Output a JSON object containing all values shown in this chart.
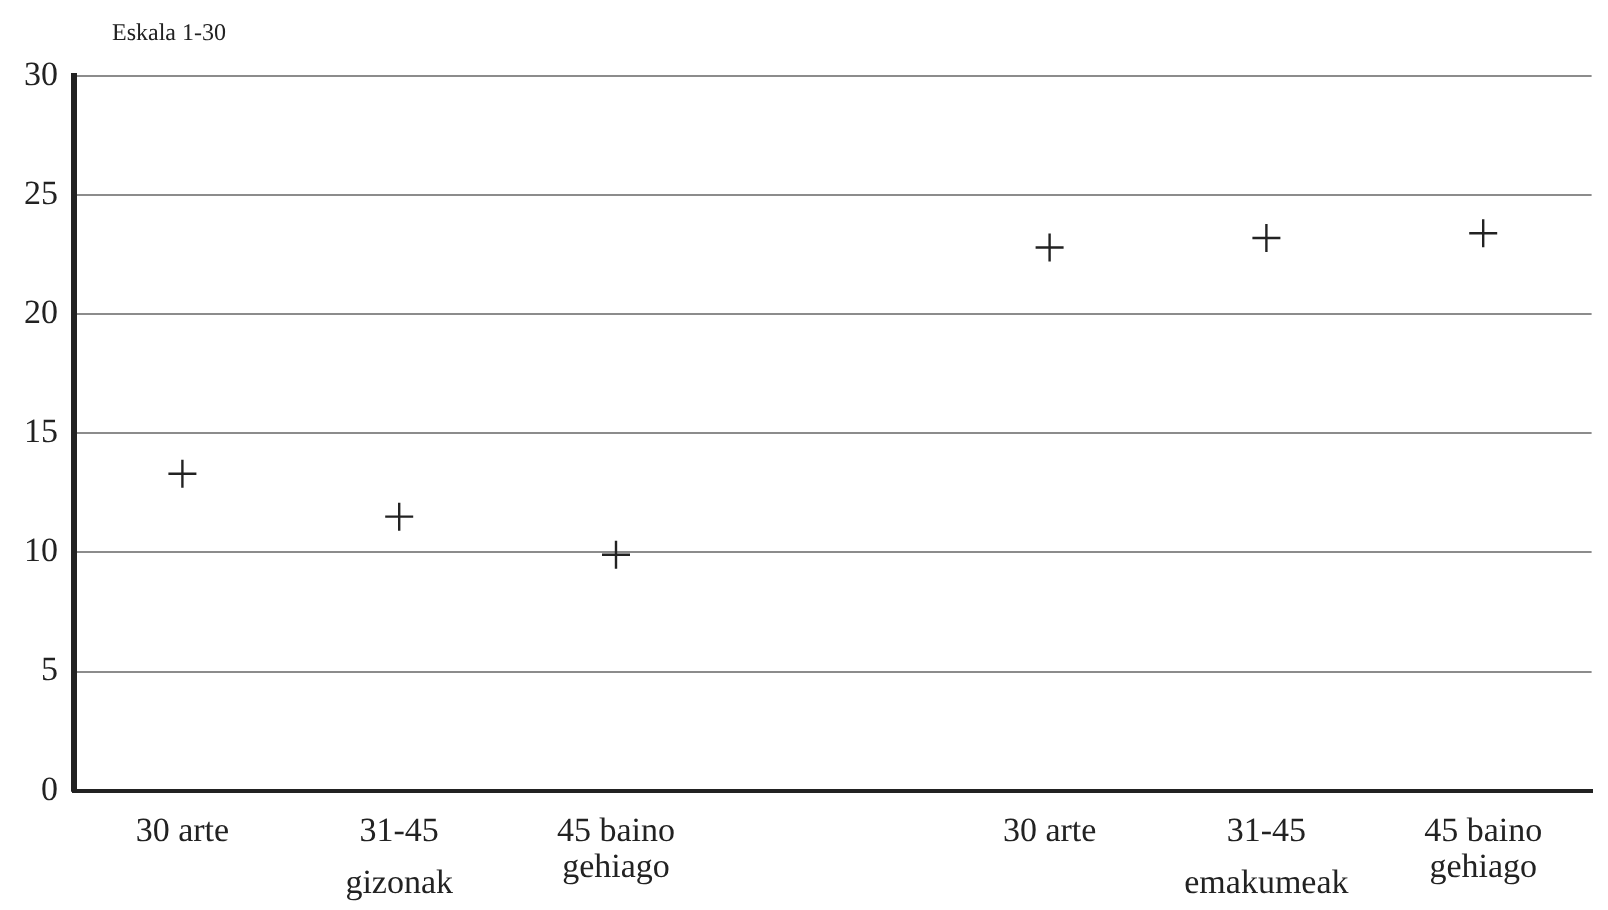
{
  "chart_data": {
    "type": "scatter",
    "ylabel": "Eskala 1-30",
    "categories": [
      "30 arte",
      "31-45",
      "45 baino gehiago",
      null,
      "30 arte",
      "31-45",
      "45 baino gehiago"
    ],
    "series": [
      {
        "color": "#222222",
        "values": [
          13.3,
          11.5,
          9.9,
          null,
          22.8,
          23.2,
          23.4
        ]
      }
    ],
    "annotations": [
      "gizonak",
      "emakumeak"
    ],
    "ylim": [
      0,
      30
    ],
    "yticks": [
      0,
      5,
      10,
      15,
      20,
      25,
      30
    ],
    "grid": "y",
    "marker": "cross",
    "legend": false
  }
}
